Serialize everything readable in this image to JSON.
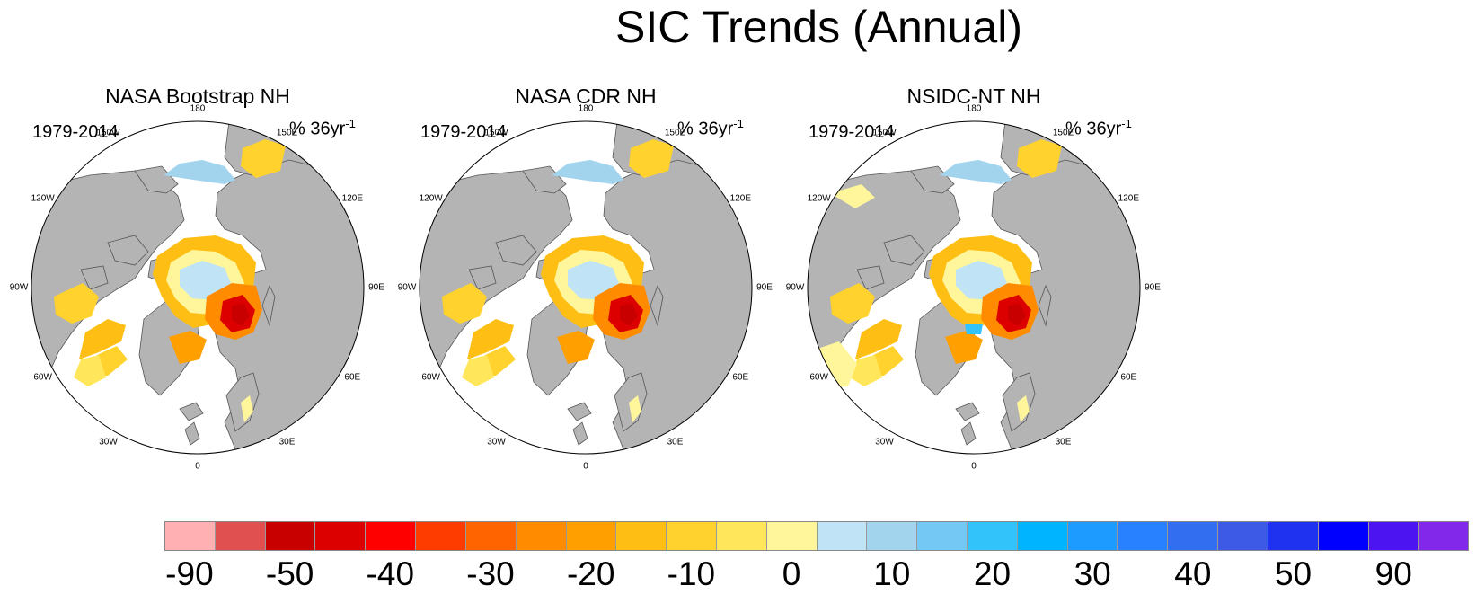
{
  "title": "SIC Trends (Annual)",
  "panels": [
    {
      "title": "NASA Bootstrap NH",
      "period": "1979-2014",
      "units": "% 36yr",
      "units_exp": "-1"
    },
    {
      "title": "NASA CDR NH",
      "period": "1979-2014",
      "units": "% 36yr",
      "units_exp": "-1"
    },
    {
      "title": "NSIDC-NT NH",
      "period": "1979-2014",
      "units": "% 36yr",
      "units_exp": "-1"
    }
  ],
  "longitude_labels": {
    "n180": "180",
    "n150E": "150E",
    "n120E": "120E",
    "n90E": "90E",
    "n60E": "60E",
    "n30E": "30E",
    "n0": "0",
    "n30W": "30W",
    "n60W": "60W",
    "n90W": "90W",
    "n120W": "120W",
    "n150W": "150W"
  },
  "colorbar": {
    "colors": [
      "#ffb0b3",
      "#e05050",
      "#c80000",
      "#dc0000",
      "#ff0000",
      "#ff3c00",
      "#ff6400",
      "#ff8c00",
      "#ffa000",
      "#ffbe14",
      "#ffd22d",
      "#ffe65a",
      "#fff59b",
      "#c0e4f6",
      "#a2d4ee",
      "#73c8f4",
      "#32c3fa",
      "#00b4ff",
      "#1e9bff",
      "#2882ff",
      "#326ef0",
      "#3c5ae6",
      "#1e32f0",
      "#0000ff",
      "#4b14f0",
      "#8228eb"
    ],
    "ticks": [
      {
        "label": "-90",
        "boundary": 1
      },
      {
        "label": "-50",
        "boundary": 3
      },
      {
        "label": "-40",
        "boundary": 5
      },
      {
        "label": "-30",
        "boundary": 7
      },
      {
        "label": "-20",
        "boundary": 9
      },
      {
        "label": "-10",
        "boundary": 11
      },
      {
        "label": "0",
        "boundary": 13
      },
      {
        "label": "10",
        "boundary": 15
      },
      {
        "label": "20",
        "boundary": 17
      },
      {
        "label": "30",
        "boundary": 19
      },
      {
        "label": "40",
        "boundary": 21
      },
      {
        "label": "50",
        "boundary": 23
      },
      {
        "label": "90",
        "boundary": 25
      }
    ]
  },
  "colors": {
    "land": "#b4b4b4",
    "ocean": "#ffffff",
    "coast": "#555555"
  }
}
